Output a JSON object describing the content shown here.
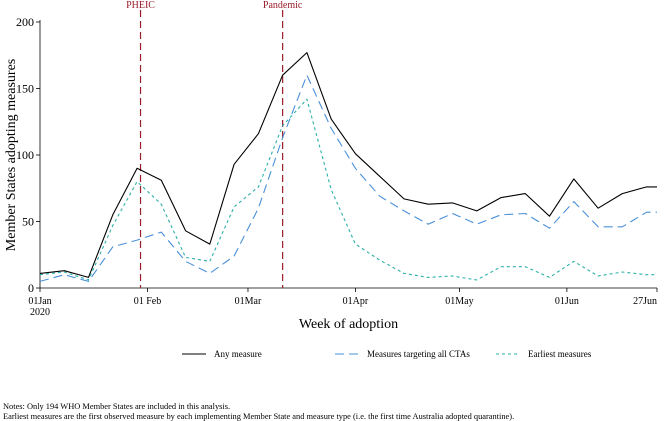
{
  "chart_data": {
    "type": "line",
    "xlabel": "Week of adoption",
    "ylabel": "Member States adopting measures",
    "ylim": [
      0,
      200
    ],
    "yticks": [
      0,
      50,
      100,
      150,
      200
    ],
    "xticks": [
      {
        "date": "2020-01-01",
        "label": "01Jan",
        "label2": "2020"
      },
      {
        "date": "2020-02-01",
        "label": "01 Feb"
      },
      {
        "date": "2020-03-01",
        "label": "01Mar"
      },
      {
        "date": "2020-04-01",
        "label": "01Apr"
      },
      {
        "date": "2020-05-01",
        "label": "01May"
      },
      {
        "date": "2020-06-01",
        "label": "01Jun"
      },
      {
        "date": "2020-06-27",
        "label": "27Jun"
      }
    ],
    "vlines": [
      {
        "date": "2020-01-30",
        "label": "PHEIC",
        "color": "#9b1c2b"
      },
      {
        "date": "2020-03-11",
        "label": "Pandemic",
        "color": "#9b1c2b"
      }
    ],
    "x": [
      "2020-01-01",
      "2020-01-08",
      "2020-01-15",
      "2020-01-22",
      "2020-01-29",
      "2020-02-05",
      "2020-02-12",
      "2020-02-19",
      "2020-02-26",
      "2020-03-04",
      "2020-03-11",
      "2020-03-18",
      "2020-03-25",
      "2020-04-01",
      "2020-04-08",
      "2020-04-15",
      "2020-04-22",
      "2020-04-29",
      "2020-05-06",
      "2020-05-13",
      "2020-05-20",
      "2020-05-27",
      "2020-06-03",
      "2020-06-10",
      "2020-06-17",
      "2020-06-24",
      "2020-06-27"
    ],
    "series": [
      {
        "name": "Any measure",
        "style": "solid",
        "color": "#000000",
        "values": [
          11,
          13,
          8,
          55,
          90,
          81,
          43,
          33,
          93,
          116,
          160,
          177,
          127,
          101,
          84,
          67,
          63,
          64,
          58,
          68,
          71,
          54,
          82,
          60,
          71,
          76,
          76
        ]
      },
      {
        "name": "Measures targeting all CTAs",
        "style": "longdash",
        "color": "#4a90d9",
        "values": [
          5,
          10,
          5,
          31,
          36,
          42,
          20,
          11,
          24,
          60,
          113,
          160,
          120,
          90,
          69,
          58,
          48,
          56,
          48,
          55,
          56,
          45,
          65,
          46,
          46,
          57,
          57
        ]
      },
      {
        "name": "Earliest measures",
        "style": "shortdash",
        "color": "#2ab0a8",
        "values": [
          10,
          12,
          6,
          47,
          80,
          63,
          23,
          20,
          61,
          76,
          122,
          142,
          74,
          33,
          21,
          11,
          8,
          9,
          6,
          16,
          16,
          8,
          20,
          9,
          12,
          10,
          10
        ]
      }
    ]
  },
  "notes": {
    "line1": "Notes: Only 194 WHO Member States are included in this analysis.",
    "line2": "Earliest measures are the first observed measure by each implementing Member State and measure type (i.e. the first time Australia adopted quarantine)."
  }
}
